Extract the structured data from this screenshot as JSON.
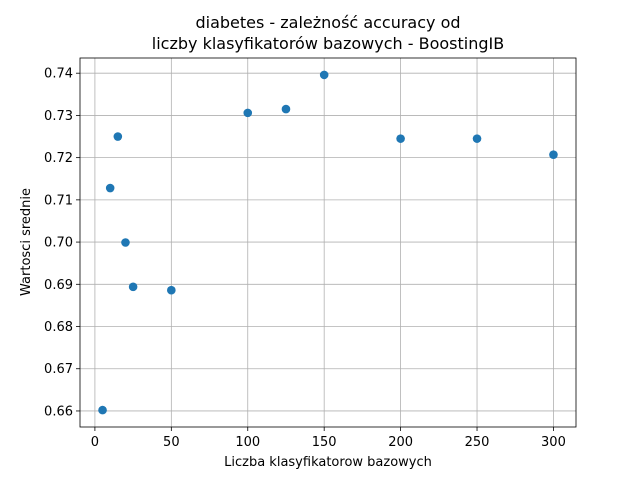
{
  "chart_data": {
    "type": "scatter",
    "title_lines": [
      "diabetes - zależność accuracy od",
      "liczby klasyfikatorów bazowych - BoostingIB"
    ],
    "xlabel": "Liczba klasyfikatorow bazowych",
    "ylabel": "Wartosci srednie",
    "x": [
      5,
      10,
      15,
      20,
      25,
      50,
      100,
      125,
      150,
      200,
      250,
      300
    ],
    "y": [
      0.6602,
      0.7128,
      0.725,
      0.6999,
      0.6894,
      0.6886,
      0.7306,
      0.7315,
      0.7396,
      0.7245,
      0.7245,
      0.7207
    ],
    "xlim": [
      -9.75,
      314.75
    ],
    "ylim": [
      0.6562,
      0.7436
    ],
    "xticks": [
      0,
      50,
      100,
      150,
      200,
      250,
      300
    ],
    "xtick_labels": [
      "0",
      "50",
      "100",
      "150",
      "200",
      "250",
      "300"
    ],
    "yticks": [
      0.66,
      0.67,
      0.68,
      0.69,
      0.7,
      0.71,
      0.72,
      0.73,
      0.74
    ],
    "ytick_labels": [
      "0.66",
      "0.67",
      "0.68",
      "0.69",
      "0.70",
      "0.71",
      "0.72",
      "0.73",
      "0.74"
    ],
    "grid": true,
    "marker_color": "#1f77b4"
  }
}
